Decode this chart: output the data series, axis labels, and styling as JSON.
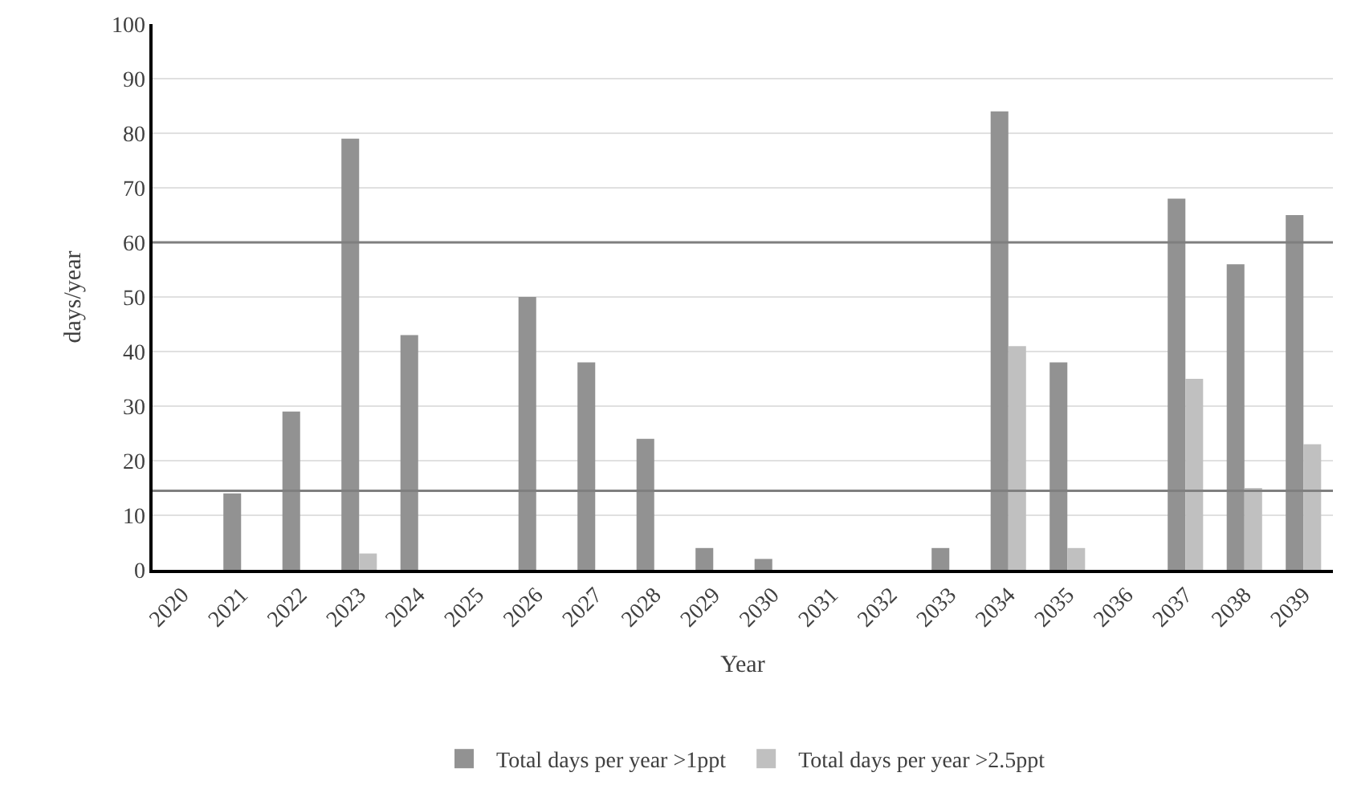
{
  "chart_data": {
    "type": "bar",
    "xlabel": "Year",
    "ylabel": "days/year",
    "categories": [
      "2020",
      "2021",
      "2022",
      "2023",
      "2024",
      "2025",
      "2026",
      "2027",
      "2028",
      "2029",
      "2030",
      "2031",
      "2032",
      "2033",
      "2034",
      "2035",
      "2036",
      "2037",
      "2038",
      "2039"
    ],
    "series": [
      {
        "name": "Total days per year >1ppt",
        "color": "#929292",
        "values": [
          0,
          14,
          29,
          79,
          43,
          0,
          50,
          38,
          24,
          4,
          2,
          0,
          0,
          4,
          84,
          38,
          0,
          68,
          56,
          65
        ]
      },
      {
        "name": "Total days per year >2.5ppt",
        "color": "#c0c0c0",
        "values": [
          0,
          0,
          0,
          3,
          0,
          0,
          0,
          0,
          0,
          0,
          0,
          0,
          0,
          0,
          41,
          4,
          0,
          35,
          15,
          23
        ]
      }
    ],
    "ylim": [
      0,
      100
    ],
    "yticks": [
      0,
      10,
      20,
      30,
      40,
      50,
      60,
      70,
      80,
      90,
      100
    ],
    "grid": "y",
    "legend": "bottom",
    "ref_lines": [
      {
        "axis": "y",
        "value": 60,
        "color": "#7f7f7f"
      },
      {
        "axis": "y",
        "value": 14.5,
        "color": "#7f7f7f"
      }
    ]
  }
}
